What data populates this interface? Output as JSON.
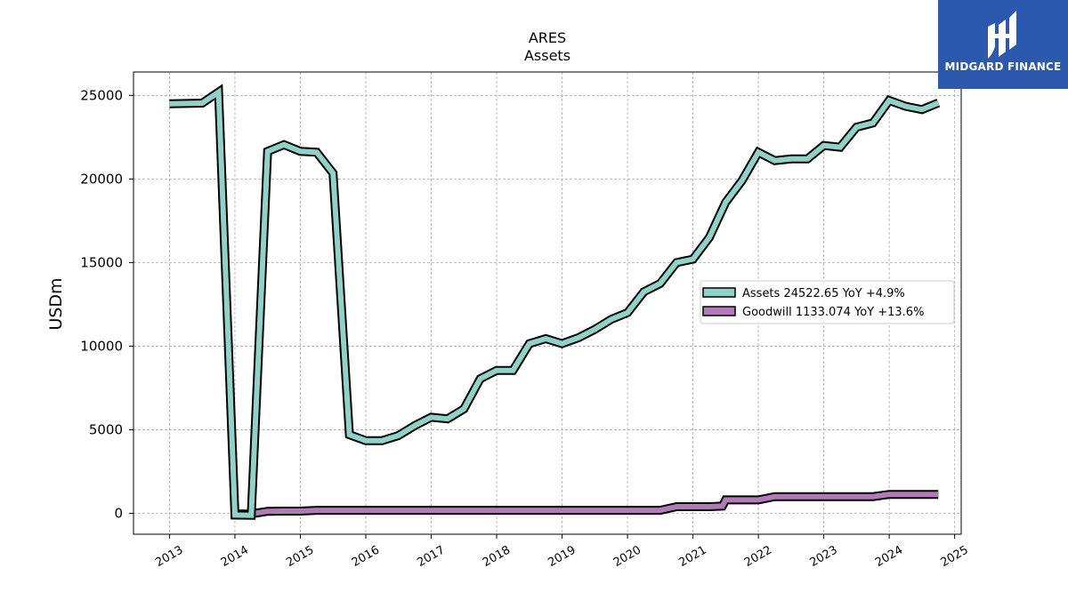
{
  "logo": {
    "text": "MIDGARD FINANCE"
  },
  "chart_data": {
    "type": "line",
    "title": "ARES",
    "subtitle": "Assets",
    "ylabel": "USDm",
    "xlim": [
      2012.45,
      2025.1
    ],
    "ylim": [
      -1250,
      26400
    ],
    "xticks": [
      2013,
      2014,
      2015,
      2016,
      2017,
      2018,
      2019,
      2020,
      2021,
      2022,
      2023,
      2024,
      2025
    ],
    "yticks": [
      0,
      5000,
      10000,
      15000,
      20000,
      25000
    ],
    "grid": true,
    "legend_position": "center-right",
    "series": [
      {
        "name": "Assets  24522.65 YoY +4.9%",
        "color": "#8ed3c7",
        "points": [
          [
            2013.0,
            24500
          ],
          [
            2013.25,
            24520
          ],
          [
            2013.5,
            24540
          ],
          [
            2013.75,
            25200
          ],
          [
            2014.0,
            -100
          ],
          [
            2014.25,
            -120
          ],
          [
            2014.5,
            21650
          ],
          [
            2014.75,
            22050
          ],
          [
            2015.0,
            21650
          ],
          [
            2015.25,
            21600
          ],
          [
            2015.5,
            20350
          ],
          [
            2015.75,
            4700
          ],
          [
            2016.0,
            4350
          ],
          [
            2016.25,
            4350
          ],
          [
            2016.5,
            4650
          ],
          [
            2016.75,
            5250
          ],
          [
            2017.0,
            5750
          ],
          [
            2017.25,
            5650
          ],
          [
            2017.5,
            6250
          ],
          [
            2017.75,
            8050
          ],
          [
            2018.0,
            8550
          ],
          [
            2018.25,
            8550
          ],
          [
            2018.5,
            10150
          ],
          [
            2018.75,
            10450
          ],
          [
            2019.0,
            10150
          ],
          [
            2019.25,
            10500
          ],
          [
            2019.5,
            11000
          ],
          [
            2019.75,
            11600
          ],
          [
            2020.0,
            12000
          ],
          [
            2020.25,
            13250
          ],
          [
            2020.5,
            13750
          ],
          [
            2020.75,
            15000
          ],
          [
            2021.0,
            15200
          ],
          [
            2021.25,
            16500
          ],
          [
            2021.5,
            18600
          ],
          [
            2021.75,
            19900
          ],
          [
            2022.0,
            21600
          ],
          [
            2022.25,
            21100
          ],
          [
            2022.5,
            21200
          ],
          [
            2022.75,
            21200
          ],
          [
            2023.0,
            22000
          ],
          [
            2023.25,
            21900
          ],
          [
            2023.5,
            23100
          ],
          [
            2023.75,
            23350
          ],
          [
            2024.0,
            24700
          ],
          [
            2024.25,
            24350
          ],
          [
            2024.5,
            24150
          ],
          [
            2024.75,
            24550
          ]
        ]
      },
      {
        "name": "Goodwill  1133.074 YoY +13.6%",
        "color": "#b27ab8",
        "points": [
          [
            2014.0,
            -50
          ],
          [
            2014.25,
            -30
          ],
          [
            2014.5,
            120
          ],
          [
            2014.75,
            130
          ],
          [
            2015.0,
            130
          ],
          [
            2015.25,
            180
          ],
          [
            2015.5,
            180
          ],
          [
            2015.75,
            180
          ],
          [
            2016.0,
            180
          ],
          [
            2016.25,
            180
          ],
          [
            2016.5,
            180
          ],
          [
            2016.75,
            180
          ],
          [
            2017.0,
            180
          ],
          [
            2017.25,
            180
          ],
          [
            2017.5,
            180
          ],
          [
            2017.75,
            180
          ],
          [
            2018.0,
            180
          ],
          [
            2018.25,
            180
          ],
          [
            2018.5,
            180
          ],
          [
            2018.75,
            180
          ],
          [
            2019.0,
            180
          ],
          [
            2019.25,
            180
          ],
          [
            2019.5,
            180
          ],
          [
            2019.75,
            180
          ],
          [
            2020.0,
            180
          ],
          [
            2020.25,
            180
          ],
          [
            2020.5,
            180
          ],
          [
            2020.75,
            400
          ],
          [
            2021.0,
            400
          ],
          [
            2021.25,
            400
          ],
          [
            2021.45,
            430
          ],
          [
            2021.5,
            800
          ],
          [
            2021.75,
            800
          ],
          [
            2022.0,
            800
          ],
          [
            2022.25,
            1000
          ],
          [
            2022.5,
            1000
          ],
          [
            2022.75,
            1000
          ],
          [
            2023.0,
            1000
          ],
          [
            2023.25,
            1000
          ],
          [
            2023.5,
            1000
          ],
          [
            2023.75,
            1000
          ],
          [
            2024.0,
            1130
          ],
          [
            2024.25,
            1133
          ],
          [
            2024.5,
            1133
          ],
          [
            2024.75,
            1133
          ]
        ]
      }
    ]
  }
}
